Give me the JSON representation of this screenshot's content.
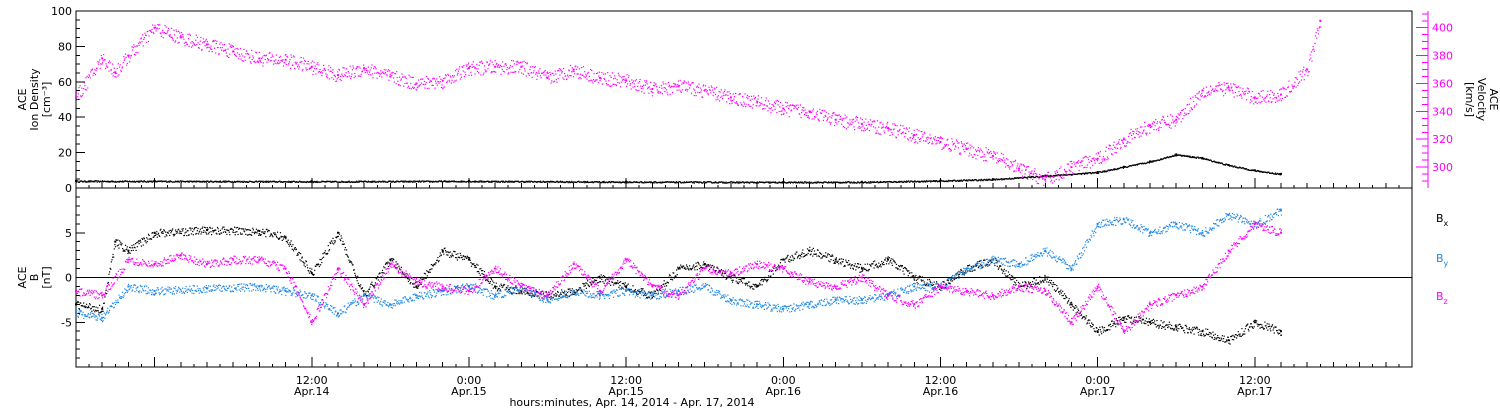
{
  "chart_data": [
    {
      "type": "scatter",
      "panel": "top",
      "ylabel_lines": [
        "ACE",
        "Ion Density",
        "[cm⁻³]"
      ],
      "ylim": [
        0,
        100
      ],
      "yticks": [
        0,
        20,
        40,
        60,
        80,
        100
      ],
      "y2label_lines": [
        "ACE",
        "Velocity",
        "[km/s]"
      ],
      "y2lim": [
        285,
        412
      ],
      "y2ticks": [
        300,
        320,
        340,
        360,
        380,
        400
      ],
      "series": [
        {
          "axis": "left",
          "color": "#000000",
          "points": [
            [
              -6,
              4
            ],
            [
              0,
              4
            ],
            [
              12,
              3.8
            ],
            [
              24,
              4
            ],
            [
              36,
              3.6
            ],
            [
              48,
              3.4
            ],
            [
              54,
              3.5
            ],
            [
              60,
              4.2
            ],
            [
              64,
              5
            ],
            [
              68,
              7
            ],
            [
              72,
              9
            ],
            [
              74,
              12
            ],
            [
              76,
              15
            ],
            [
              78,
              19
            ],
            [
              80,
              17
            ],
            [
              82,
              13
            ],
            [
              84,
              10
            ],
            [
              86,
              8
            ]
          ]
        },
        {
          "axis": "right",
          "color": "#ff00ff",
          "points": [
            [
              -6,
              350
            ],
            [
              -4,
              378
            ],
            [
              -3,
              368
            ],
            [
              -2,
              380
            ],
            [
              0,
              400
            ],
            [
              2,
              393
            ],
            [
              4,
              388
            ],
            [
              6,
              383
            ],
            [
              8,
              378
            ],
            [
              10,
              377
            ],
            [
              12,
              372
            ],
            [
              14,
              366
            ],
            [
              16,
              371
            ],
            [
              18,
              365
            ],
            [
              20,
              360
            ],
            [
              22,
              362
            ],
            [
              24,
              371
            ],
            [
              26,
              372
            ],
            [
              28,
              372
            ],
            [
              30,
              364
            ],
            [
              32,
              370
            ],
            [
              34,
              364
            ],
            [
              36,
              362
            ],
            [
              38,
              356
            ],
            [
              40,
              358
            ],
            [
              42,
              355
            ],
            [
              44,
              350
            ],
            [
              46,
              347
            ],
            [
              48,
              342
            ],
            [
              50,
              340
            ],
            [
              52,
              334
            ],
            [
              54,
              331
            ],
            [
              56,
              328
            ],
            [
              58,
              323
            ],
            [
              60,
              318
            ],
            [
              62,
              313
            ],
            [
              64,
              308
            ],
            [
              66,
              299
            ],
            [
              68,
              291
            ],
            [
              70,
              300
            ],
            [
              72,
              306
            ],
            [
              74,
              320
            ],
            [
              76,
              330
            ],
            [
              78,
              334
            ],
            [
              80,
              355
            ],
            [
              82,
              357
            ],
            [
              84,
              350
            ],
            [
              86,
              352
            ],
            [
              88,
              370
            ],
            [
              89,
              405
            ]
          ]
        }
      ]
    },
    {
      "type": "scatter",
      "panel": "bottom",
      "ylabel_lines": [
        "ACE",
        "B",
        "[nT]"
      ],
      "ylim": [
        -10,
        10
      ],
      "yticks": [
        -5,
        0,
        5
      ],
      "legend": [
        "Bx",
        "By",
        "Bz"
      ],
      "x_tick_labels": [
        [
          "12:00",
          "Apr.14"
        ],
        [
          "0:00",
          "Apr.15"
        ],
        [
          "12:00",
          "Apr.15"
        ],
        [
          "0:00",
          "Apr.16"
        ],
        [
          "12:00",
          "Apr.16"
        ],
        [
          "0:00",
          "Apr.17"
        ],
        [
          "12:00",
          "Apr.17"
        ]
      ],
      "x_tick_hours": [
        12,
        24,
        36,
        48,
        60,
        72,
        84
      ],
      "xlim_hours": [
        -6,
        96
      ],
      "xlabel": "hours:minutes, Apr. 14, 2014 - Apr. 17, 2014",
      "series": [
        {
          "name": "Bx",
          "color": "#000000",
          "points": [
            [
              -6,
              -3
            ],
            [
              -4,
              -3.5
            ],
            [
              -3,
              4
            ],
            [
              -2,
              3
            ],
            [
              0,
              5
            ],
            [
              4,
              5.3
            ],
            [
              8,
              5.2
            ],
            [
              10,
              4.5
            ],
            [
              12,
              0.5
            ],
            [
              14,
              5
            ],
            [
              16,
              -2
            ],
            [
              18,
              2
            ],
            [
              20,
              -1
            ],
            [
              22,
              3
            ],
            [
              24,
              2
            ],
            [
              26,
              -1
            ],
            [
              28,
              -1.5
            ],
            [
              30,
              -2
            ],
            [
              32,
              -1.5
            ],
            [
              34,
              0
            ],
            [
              36,
              -1
            ],
            [
              38,
              -2
            ],
            [
              40,
              1
            ],
            [
              42,
              1.5
            ],
            [
              44,
              0
            ],
            [
              46,
              -1
            ],
            [
              48,
              2
            ],
            [
              50,
              3
            ],
            [
              52,
              2
            ],
            [
              54,
              1
            ],
            [
              56,
              2
            ],
            [
              58,
              0
            ],
            [
              60,
              -1
            ],
            [
              62,
              1
            ],
            [
              64,
              2
            ],
            [
              66,
              -1
            ],
            [
              68,
              0
            ],
            [
              70,
              -3
            ],
            [
              72,
              -6
            ],
            [
              74,
              -4.5
            ],
            [
              76,
              -5
            ],
            [
              78,
              -5.5
            ],
            [
              80,
              -6
            ],
            [
              82,
              -7
            ],
            [
              84,
              -5
            ],
            [
              86,
              -6
            ]
          ]
        },
        {
          "name": "By",
          "color": "#1e88e5",
          "points": [
            [
              -6,
              -4
            ],
            [
              -4,
              -4.5
            ],
            [
              -2,
              -1
            ],
            [
              0,
              -1.5
            ],
            [
              4,
              -1.2
            ],
            [
              8,
              -1
            ],
            [
              10,
              -1.5
            ],
            [
              12,
              -2
            ],
            [
              14,
              -4
            ],
            [
              16,
              -2
            ],
            [
              18,
              -3
            ],
            [
              20,
              -2
            ],
            [
              22,
              -1.5
            ],
            [
              24,
              -1
            ],
            [
              26,
              -2
            ],
            [
              28,
              -1
            ],
            [
              30,
              -2.5
            ],
            [
              32,
              -1.5
            ],
            [
              34,
              -2
            ],
            [
              36,
              -1.5
            ],
            [
              38,
              -2
            ],
            [
              40,
              -1.5
            ],
            [
              42,
              -1
            ],
            [
              44,
              -2.5
            ],
            [
              46,
              -3
            ],
            [
              48,
              -3.5
            ],
            [
              50,
              -3
            ],
            [
              52,
              -2.5
            ],
            [
              54,
              -2.5
            ],
            [
              56,
              -2
            ],
            [
              58,
              -1
            ],
            [
              60,
              -1
            ],
            [
              62,
              1
            ],
            [
              64,
              2
            ],
            [
              66,
              1.5
            ],
            [
              68,
              3
            ],
            [
              70,
              1
            ],
            [
              72,
              6
            ],
            [
              74,
              6.5
            ],
            [
              76,
              5
            ],
            [
              78,
              6
            ],
            [
              80,
              5
            ],
            [
              82,
              7
            ],
            [
              84,
              6
            ],
            [
              86,
              7.5
            ]
          ]
        },
        {
          "name": "Bz",
          "color": "#ff00ff",
          "points": [
            [
              -6,
              -1.5
            ],
            [
              -4,
              -2
            ],
            [
              -2,
              2
            ],
            [
              0,
              1.5
            ],
            [
              2,
              2.5
            ],
            [
              4,
              1.5
            ],
            [
              6,
              2
            ],
            [
              8,
              2
            ],
            [
              10,
              1
            ],
            [
              12,
              -5
            ],
            [
              14,
              1
            ],
            [
              16,
              -3
            ],
            [
              18,
              1.5
            ],
            [
              20,
              -0.5
            ],
            [
              22,
              -1
            ],
            [
              24,
              -1.5
            ],
            [
              26,
              1
            ],
            [
              28,
              -1
            ],
            [
              30,
              -2
            ],
            [
              32,
              1.5
            ],
            [
              34,
              -1.5
            ],
            [
              36,
              2
            ],
            [
              38,
              -1
            ],
            [
              40,
              -2
            ],
            [
              42,
              1
            ],
            [
              44,
              0.5
            ],
            [
              46,
              1.5
            ],
            [
              48,
              1
            ],
            [
              50,
              -0.5
            ],
            [
              52,
              -1
            ],
            [
              54,
              0
            ],
            [
              56,
              -2
            ],
            [
              58,
              -3
            ],
            [
              60,
              -1
            ],
            [
              62,
              -1.5
            ],
            [
              64,
              -2
            ],
            [
              66,
              -1
            ],
            [
              68,
              -1.5
            ],
            [
              70,
              -5
            ],
            [
              72,
              -1
            ],
            [
              74,
              -6
            ],
            [
              76,
              -3
            ],
            [
              78,
              -2
            ],
            [
              80,
              -1
            ],
            [
              82,
              3
            ],
            [
              84,
              6
            ],
            [
              86,
              5
            ]
          ]
        }
      ]
    }
  ]
}
